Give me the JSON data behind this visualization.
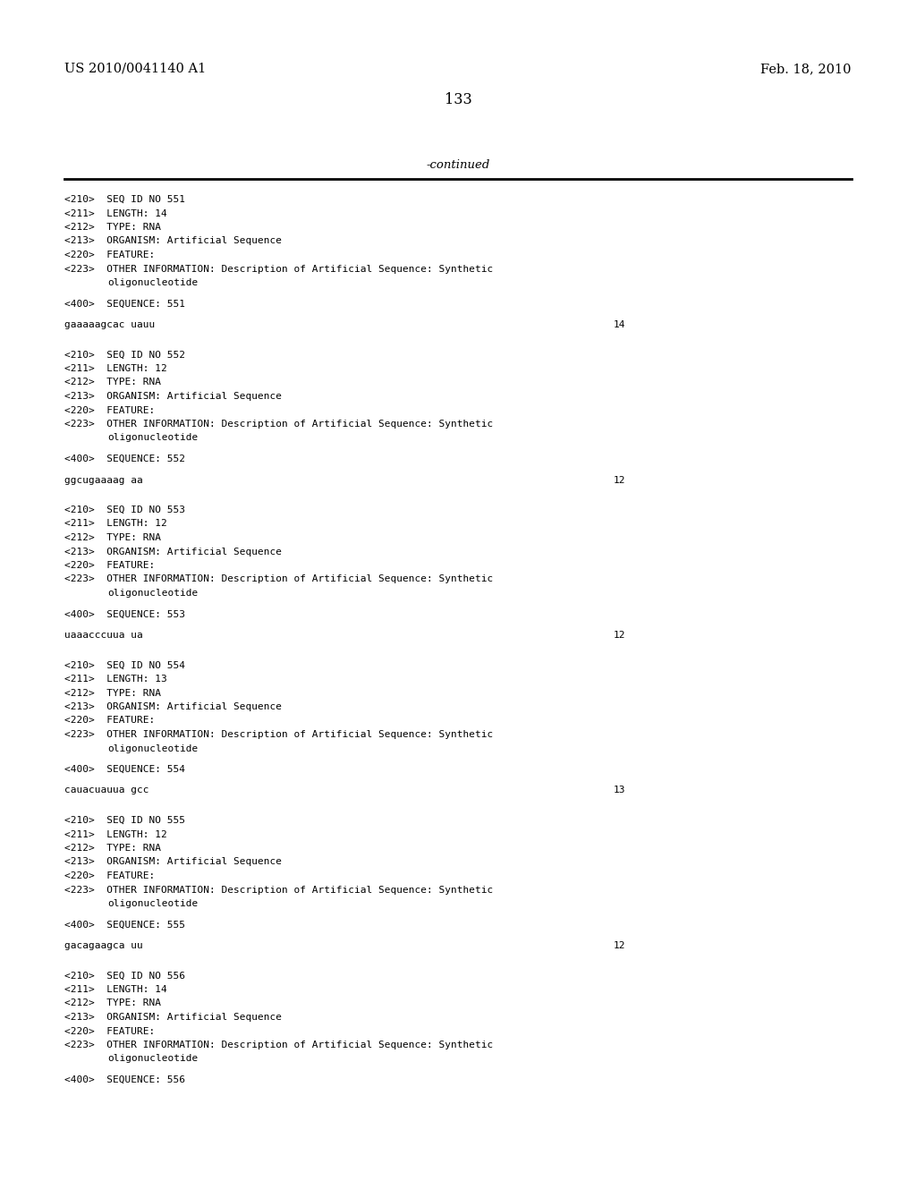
{
  "header_left": "US 2010/0041140 A1",
  "header_right": "Feb. 18, 2010",
  "page_number": "133",
  "continued_text": "-continued",
  "background_color": "#ffffff",
  "text_color": "#000000",
  "font_size_header": 10.5,
  "font_size_body": 8.0,
  "font_size_page": 11.5,
  "font_size_continued": 9.5,
  "monospace_font": "DejaVu Sans Mono",
  "serif_font": "DejaVu Serif",
  "entries": [
    {
      "seq_id": "551",
      "length": "14",
      "type": "RNA",
      "organism": "Artificial Sequence",
      "sequence": "gaaaaagcac uauu",
      "seq_length_num": "14"
    },
    {
      "seq_id": "552",
      "length": "12",
      "type": "RNA",
      "organism": "Artificial Sequence",
      "sequence": "ggcugaaaag aa",
      "seq_length_num": "12"
    },
    {
      "seq_id": "553",
      "length": "12",
      "type": "RNA",
      "organism": "Artificial Sequence",
      "sequence": "uaaacccuua ua",
      "seq_length_num": "12"
    },
    {
      "seq_id": "554",
      "length": "13",
      "type": "RNA",
      "organism": "Artificial Sequence",
      "sequence": "cauacuauua gcc",
      "seq_length_num": "13"
    },
    {
      "seq_id": "555",
      "length": "12",
      "type": "RNA",
      "organism": "Artificial Sequence",
      "sequence": "gacagaagca uu",
      "seq_length_num": "12"
    },
    {
      "seq_id": "556",
      "length": "14",
      "type": "RNA",
      "organism": "Artificial Sequence",
      "sequence": null,
      "seq_length_num": null
    }
  ]
}
